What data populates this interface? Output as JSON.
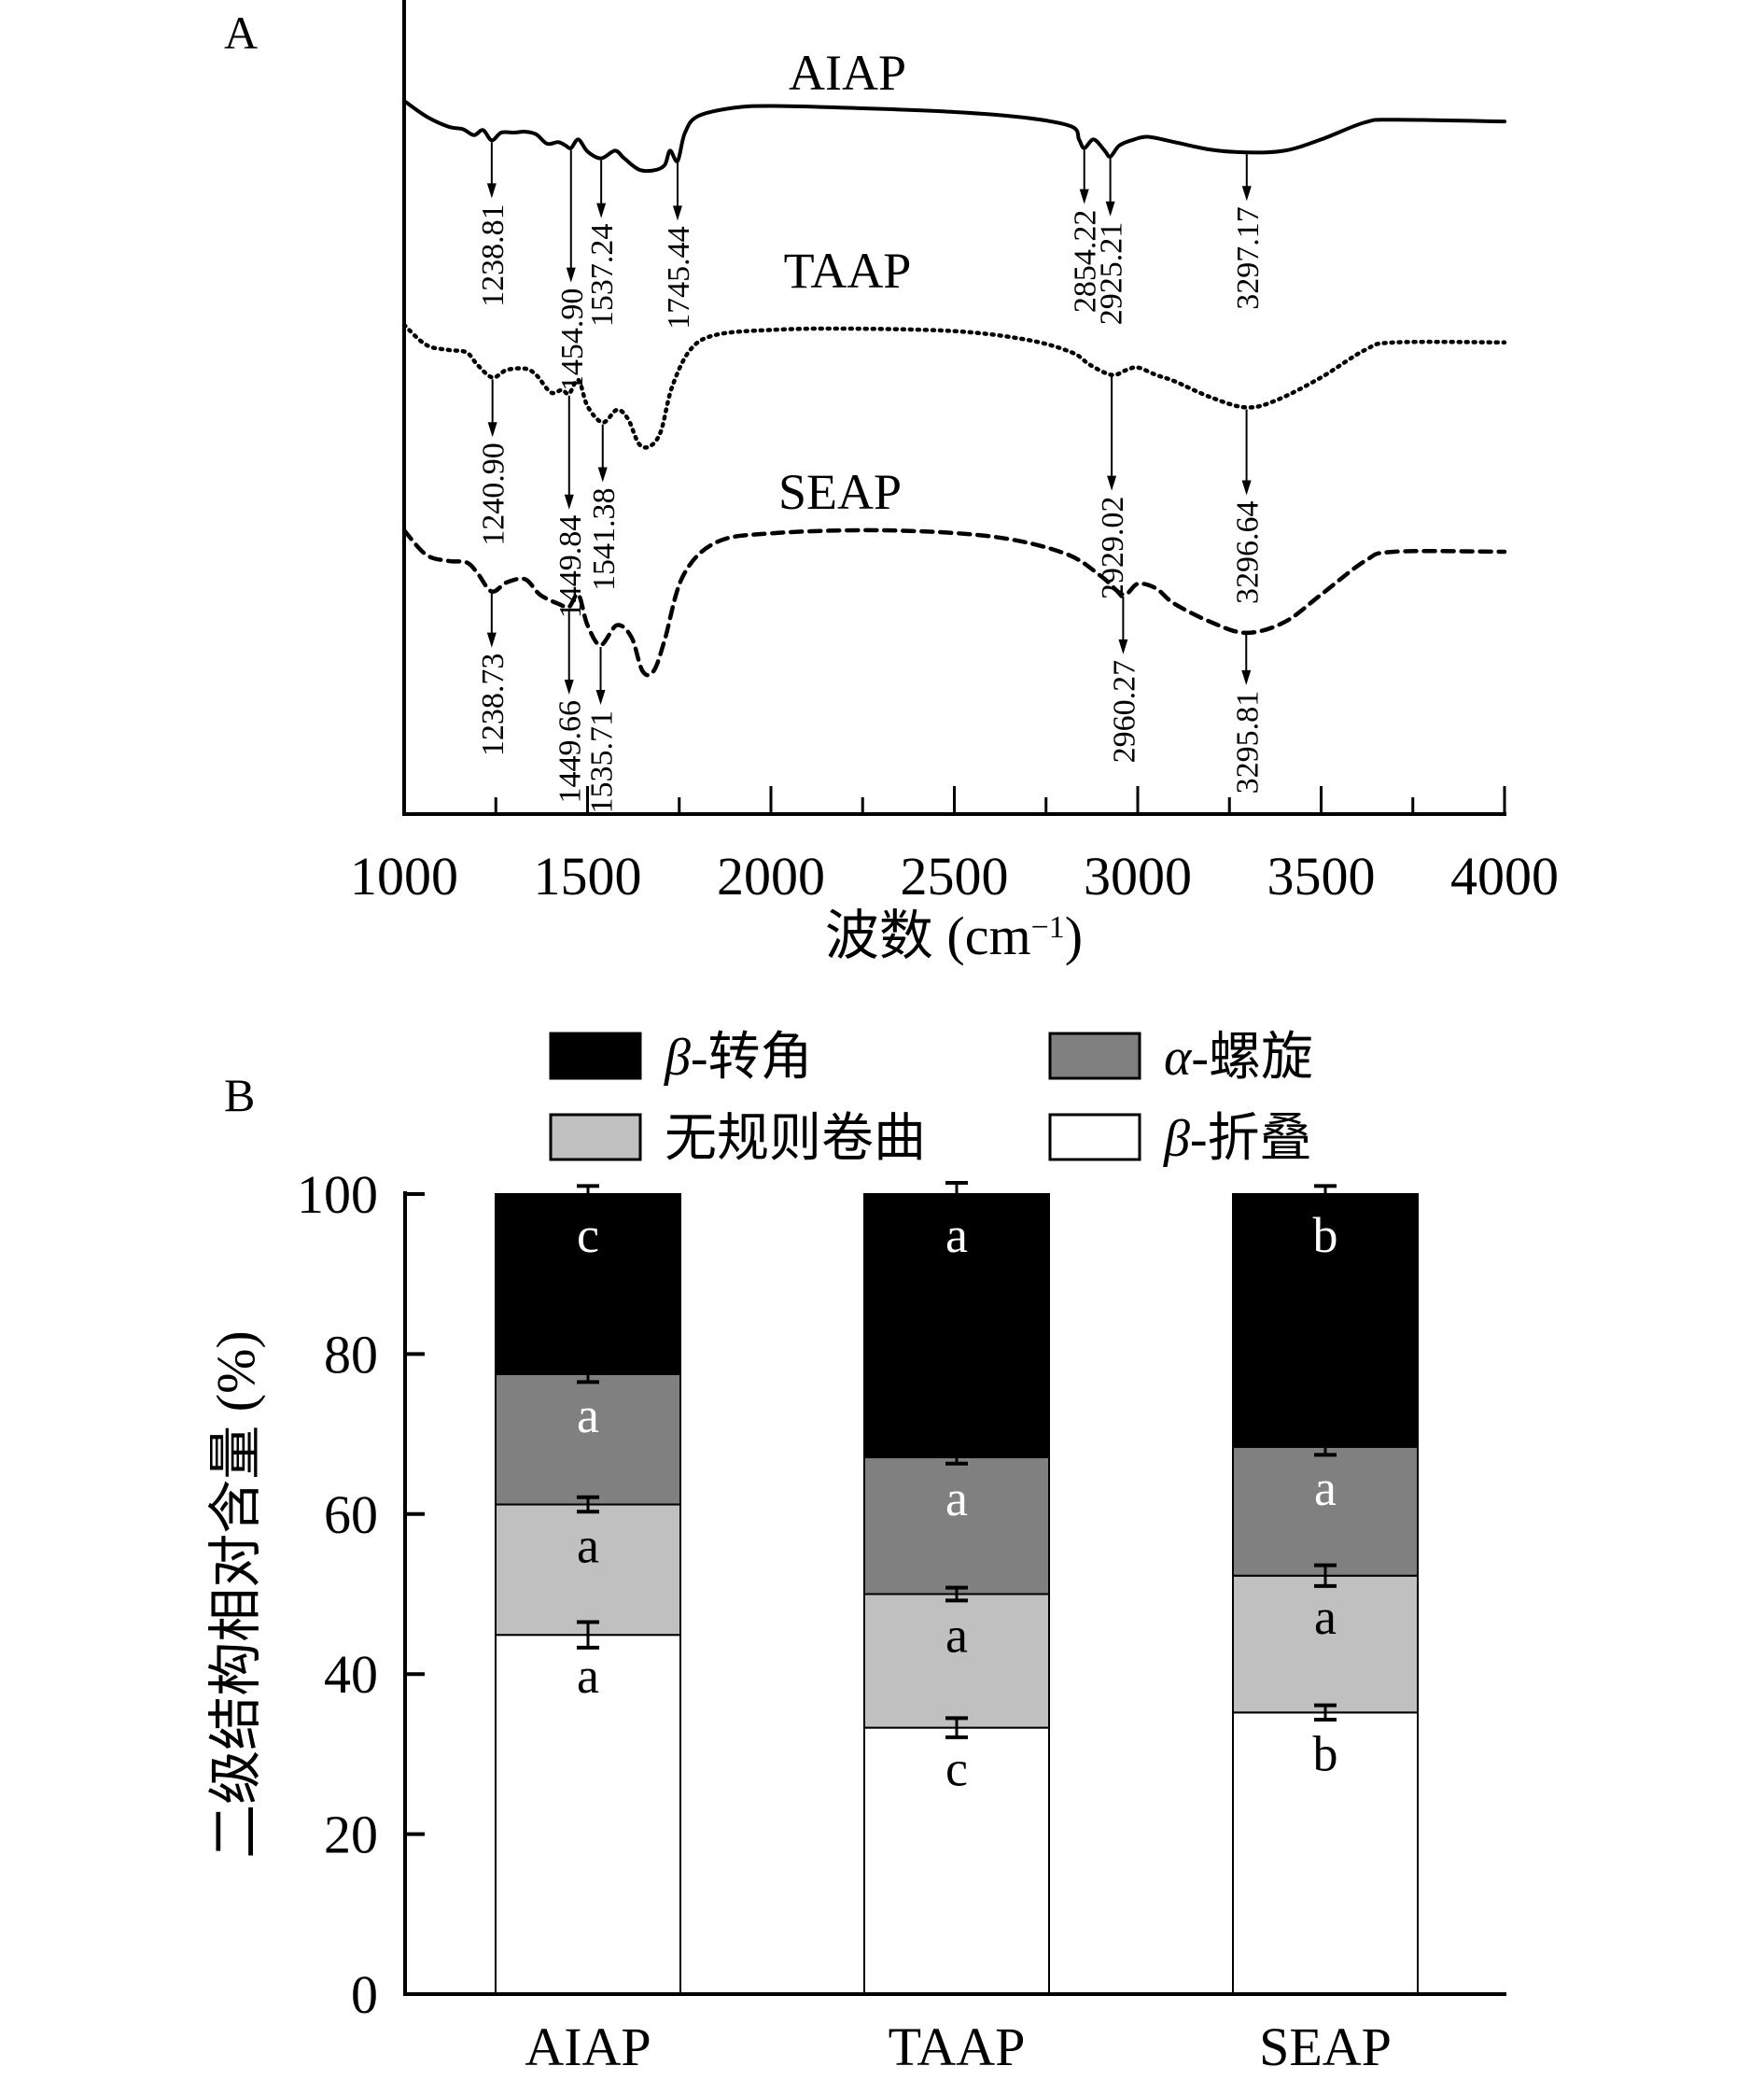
{
  "chart_data": [
    {
      "type": "line",
      "panel_label": "A",
      "title": "",
      "xlabel": "波数 (cm⁻¹)",
      "xlabel_parts": {
        "text": "波数 (cm",
        "superscript": "−1",
        "close": ")"
      },
      "ylabel": "",
      "xlim": [
        1000,
        4000
      ],
      "x_ticks": [
        1000,
        1500,
        2000,
        2500,
        3000,
        3500,
        4000
      ],
      "x_tick_labels": [
        "1000",
        "1500",
        "2000",
        "2500",
        "3000",
        "3500",
        "4000"
      ],
      "minor_x_ticks": [
        1250,
        1750,
        2250,
        2750,
        3250,
        3750
      ],
      "grid": false,
      "y_axis_units": "relative transmittance (offset, arbitrary)",
      "series": [
        {
          "name": "AIAP",
          "style": "solid",
          "points": [
            [
              1000,
              100
            ],
            [
              1060,
              82
            ],
            [
              1120,
              70
            ],
            [
              1160,
              67
            ],
            [
              1190,
              60
            ],
            [
              1215,
              66
            ],
            [
              1238.81,
              54
            ],
            [
              1265,
              63
            ],
            [
              1300,
              63
            ],
            [
              1330,
              64
            ],
            [
              1360,
              61
            ],
            [
              1390,
              50
            ],
            [
              1420,
              52
            ],
            [
              1440,
              48
            ],
            [
              1454.9,
              45
            ],
            [
              1475,
              55
            ],
            [
              1500,
              41
            ],
            [
              1537.24,
              33
            ],
            [
              1575,
              42
            ],
            [
              1600,
              33
            ],
            [
              1640,
              20
            ],
            [
              1680,
              19
            ],
            [
              1710,
              25
            ],
            [
              1725,
              42
            ],
            [
              1745.44,
              30
            ],
            [
              1765,
              62
            ],
            [
              1800,
              82
            ],
            [
              1900,
              92
            ],
            [
              2000,
              94
            ],
            [
              2200,
              92
            ],
            [
              2500,
              87
            ],
            [
              2700,
              80
            ],
            [
              2820,
              70
            ],
            [
              2840,
              55
            ],
            [
              2854.22,
              45
            ],
            [
              2880,
              55
            ],
            [
              2910,
              42
            ],
            [
              2925.21,
              35
            ],
            [
              2950,
              48
            ],
            [
              2990,
              55
            ],
            [
              3030,
              58
            ],
            [
              3100,
              52
            ],
            [
              3200,
              43
            ],
            [
              3297.17,
              40
            ],
            [
              3400,
              42
            ],
            [
              3500,
              55
            ],
            [
              3620,
              75
            ],
            [
              3700,
              78
            ],
            [
              4000,
              76
            ]
          ],
          "peaks": [
            "1238.81",
            "1454.90",
            "1537.24",
            "1745.44",
            "2854.22",
            "2925.21",
            "3297.17"
          ]
        },
        {
          "name": "TAAP",
          "style": "dotted",
          "points": [
            [
              1000,
              100
            ],
            [
              1060,
              84
            ],
            [
              1120,
              80
            ],
            [
              1170,
              78
            ],
            [
              1200,
              68
            ],
            [
              1240.9,
              58
            ],
            [
              1280,
              64
            ],
            [
              1330,
              65
            ],
            [
              1360,
              60
            ],
            [
              1400,
              46
            ],
            [
              1430,
              48
            ],
            [
              1449.84,
              45
            ],
            [
              1475,
              56
            ],
            [
              1500,
              35
            ],
            [
              1541.38,
              22
            ],
            [
              1580,
              32
            ],
            [
              1610,
              25
            ],
            [
              1640,
              5
            ],
            [
              1670,
              3
            ],
            [
              1700,
              15
            ],
            [
              1730,
              50
            ],
            [
              1780,
              80
            ],
            [
              1850,
              92
            ],
            [
              2000,
              96
            ],
            [
              2200,
              97
            ],
            [
              2500,
              95
            ],
            [
              2700,
              88
            ],
            [
              2820,
              78
            ],
            [
              2870,
              68
            ],
            [
              2929.02,
              60
            ],
            [
              2970,
              64
            ],
            [
              3000,
              66
            ],
            [
              3050,
              60
            ],
            [
              3100,
              55
            ],
            [
              3200,
              42
            ],
            [
              3296.64,
              34
            ],
            [
              3380,
              40
            ],
            [
              3500,
              58
            ],
            [
              3620,
              80
            ],
            [
              3700,
              86
            ],
            [
              4000,
              86
            ]
          ],
          "peaks": [
            "1240.90",
            "1449.84",
            "1541.38",
            "2929.02",
            "3296.64"
          ]
        },
        {
          "name": "SEAP",
          "style": "dashed",
          "points": [
            [
              1000,
              100
            ],
            [
              1060,
              84
            ],
            [
              1120,
              80
            ],
            [
              1170,
              79
            ],
            [
              1200,
              72
            ],
            [
              1238.73,
              60
            ],
            [
              1280,
              66
            ],
            [
              1330,
              68
            ],
            [
              1370,
              58
            ],
            [
              1420,
              52
            ],
            [
              1449.66,
              50
            ],
            [
              1475,
              58
            ],
            [
              1500,
              38
            ],
            [
              1535.71,
              25
            ],
            [
              1580,
              38
            ],
            [
              1620,
              30
            ],
            [
              1650,
              8
            ],
            [
              1680,
              8
            ],
            [
              1710,
              28
            ],
            [
              1760,
              70
            ],
            [
              1850,
              92
            ],
            [
              2000,
              98
            ],
            [
              2300,
              100
            ],
            [
              2600,
              96
            ],
            [
              2800,
              85
            ],
            [
              2900,
              70
            ],
            [
              2960.27,
              58
            ],
            [
              3000,
              65
            ],
            [
              3050,
              62
            ],
            [
              3100,
              52
            ],
            [
              3200,
              40
            ],
            [
              3295.81,
              33
            ],
            [
              3400,
              40
            ],
            [
              3500,
              58
            ],
            [
              3620,
              80
            ],
            [
              3700,
              86
            ],
            [
              4000,
              86
            ]
          ],
          "peaks": [
            "1238.73",
            "1449.66",
            "1535.71",
            "2960.27",
            "3295.81"
          ]
        }
      ]
    },
    {
      "type": "bar",
      "stacked": true,
      "panel_label": "B",
      "title": "",
      "xlabel": "",
      "ylabel": "二级结构相对含量 (%)",
      "ylim": [
        0,
        100
      ],
      "y_ticks": [
        0,
        20,
        40,
        60,
        80,
        100
      ],
      "y_tick_labels": [
        "0",
        "20",
        "40",
        "60",
        "80",
        "100"
      ],
      "categories": [
        "AIAP",
        "TAAP",
        "SEAP"
      ],
      "legend_position": "top",
      "series": [
        {
          "name": "β-折叠",
          "greek": "β",
          "rest": "-折叠",
          "color": "#ffffff",
          "label_color": "#000000",
          "values": [
            44.9,
            33.3,
            35.2
          ],
          "errors": [
            1.6,
            1.2,
            0.9
          ],
          "letters": [
            "a",
            "c",
            "b"
          ]
        },
        {
          "name": "无规则卷曲",
          "greek": "",
          "rest": "无规则卷曲",
          "color": "#c0c0c0",
          "label_color": "#000000",
          "values": [
            16.3,
            16.7,
            17.1
          ],
          "errors": [
            0.9,
            0.8,
            1.3
          ],
          "letters": [
            "a",
            "a",
            "a"
          ]
        },
        {
          "name": "α-螺旋",
          "greek": "α",
          "rest": "-螺旋",
          "color": "#808080",
          "label_color": "#ffffff",
          "values": [
            16.3,
            17.1,
            16.1
          ],
          "errors": [
            1.0,
            0.8,
            1.0
          ],
          "letters": [
            "a",
            "a",
            "a"
          ]
        },
        {
          "name": "β-转角",
          "greek": "β",
          "rest": "-转角",
          "color": "#000000",
          "label_color": "#ffffff",
          "values": [
            22.5,
            32.9,
            31.6
          ],
          "errors": [
            1.0,
            1.4,
            1.0
          ],
          "letters": [
            "c",
            "a",
            "b"
          ]
        }
      ],
      "legend_order": [
        "β-转角",
        "α-螺旋",
        "无规则卷曲",
        "β-折叠"
      ]
    }
  ]
}
